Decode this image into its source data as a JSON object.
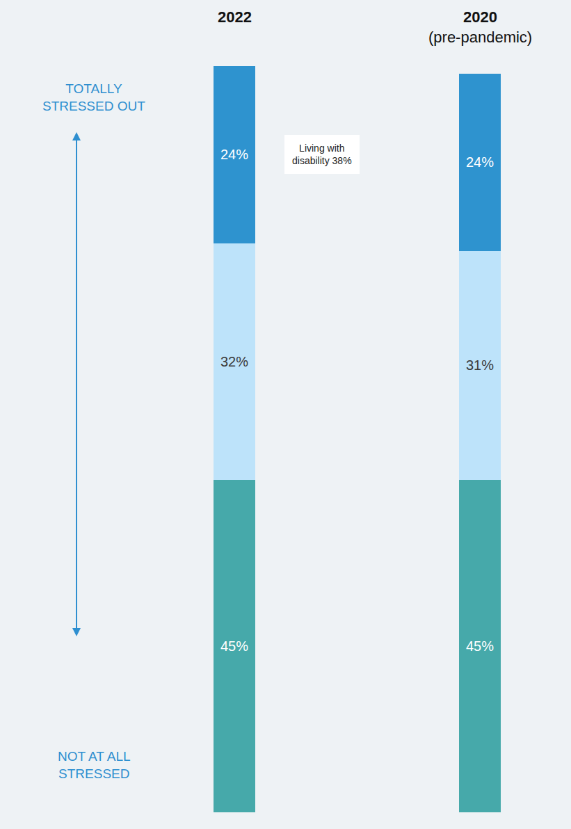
{
  "chart_data": {
    "type": "bar",
    "stacked": true,
    "categories": [
      "2022",
      "2020 (pre-pandemic)"
    ],
    "series": [
      {
        "color": "#46A9AA",
        "values": [
          45,
          45
        ],
        "value_labels": [
          "45%",
          "45%"
        ]
      },
      {
        "color": "#BDE3FA",
        "values": [
          32,
          31
        ],
        "value_labels": [
          "32%",
          "31%"
        ]
      },
      {
        "color": "#2E93CF",
        "values": [
          24,
          24
        ],
        "value_labels": [
          "24%",
          "24%"
        ]
      }
    ],
    "ylim": [
      0,
      101
    ],
    "data_labels": true,
    "tick_labels": false,
    "grid": false,
    "y_label_top": "TOTALLY STRESSED OUT",
    "y_label_bottom": "NOT AT ALL STRESSED",
    "annotations": [
      {
        "text": "Living with disability 38%",
        "category": 0,
        "series": 2
      }
    ]
  }
}
